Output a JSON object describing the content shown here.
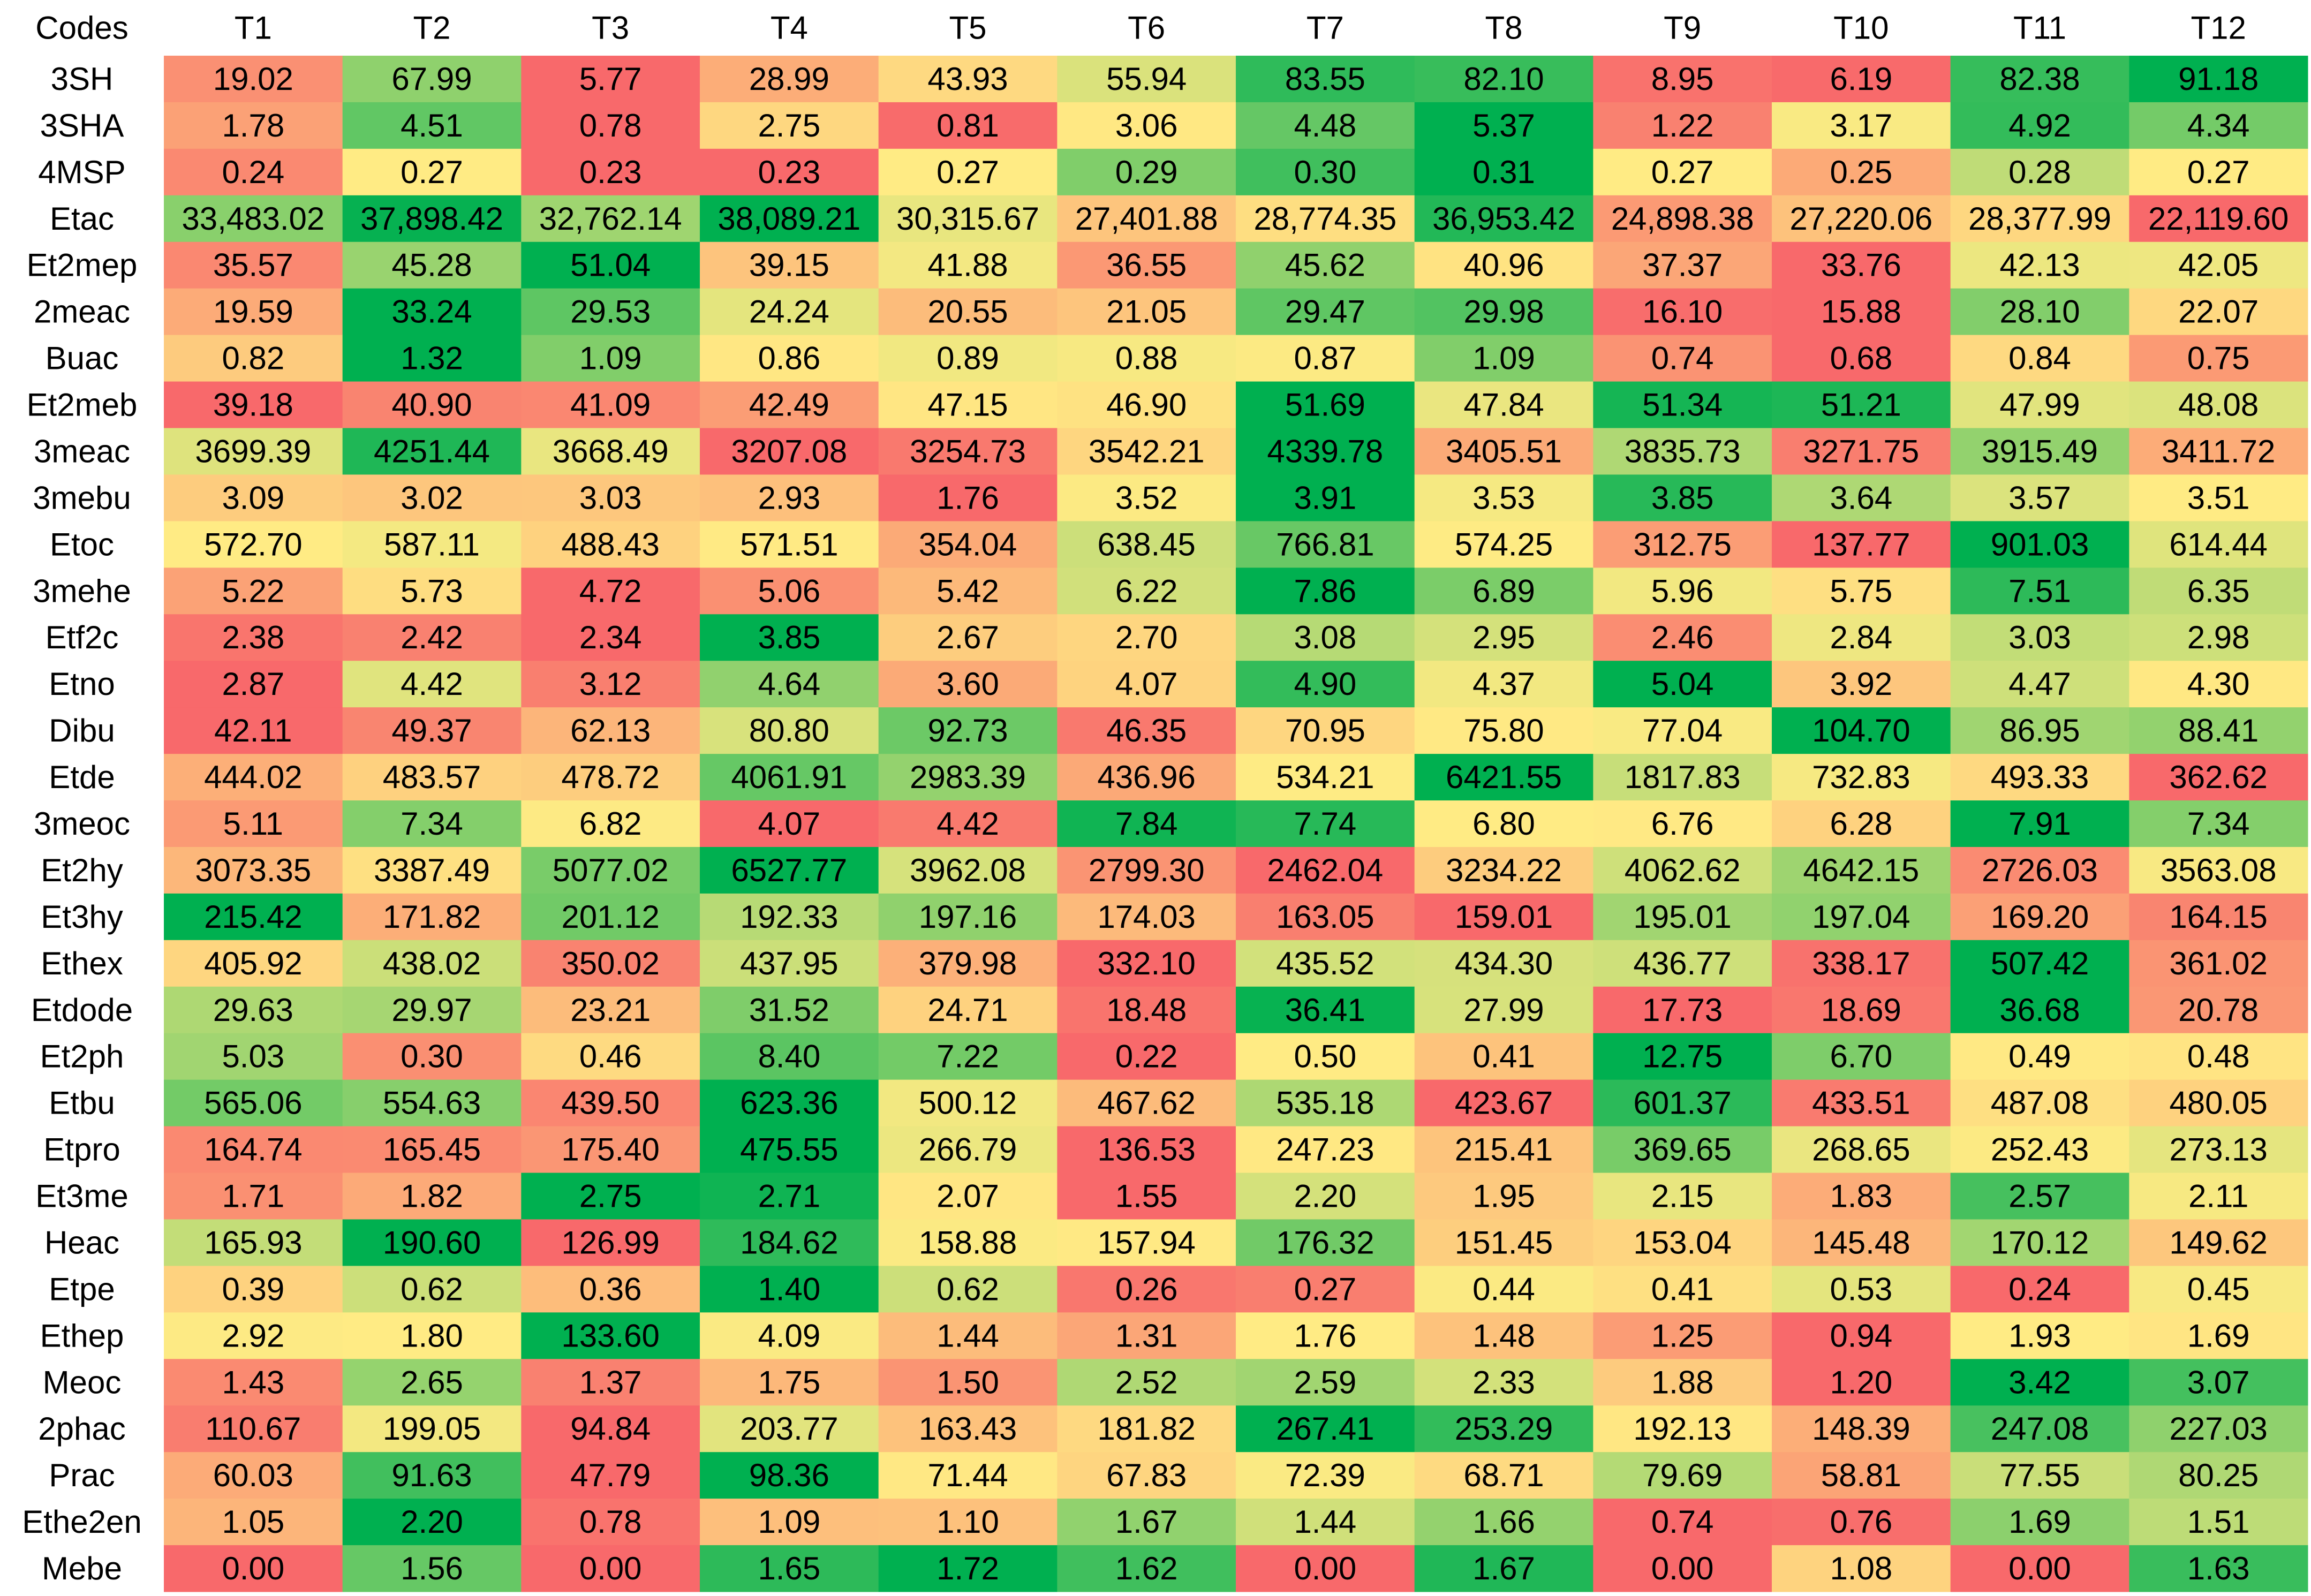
{
  "chart_data": {
    "type": "heatmap",
    "corner_label": "Codes",
    "color_scale": {
      "direction": "per-row",
      "low": "#f8696b",
      "mid": "#ffeb84",
      "high": "#00b050"
    },
    "columns": [
      "T1",
      "T2",
      "T3",
      "T4",
      "T5",
      "T6",
      "T7",
      "T8",
      "T9",
      "T10",
      "T11",
      "T12"
    ],
    "rows": [
      {
        "code": "3SH",
        "labels": [
          "19.02",
          "67.99",
          "5.77",
          "28.99",
          "43.93",
          "55.94",
          "83.55",
          "82.10",
          "8.95",
          "6.19",
          "82.38",
          "91.18"
        ],
        "values": [
          19.02,
          67.99,
          5.77,
          28.99,
          43.93,
          55.94,
          83.55,
          82.1,
          8.95,
          6.19,
          82.38,
          91.18
        ]
      },
      {
        "code": "3SHA",
        "labels": [
          "1.78",
          "4.51",
          "0.78",
          "2.75",
          "0.81",
          "3.06",
          "4.48",
          "5.37",
          "1.22",
          "3.17",
          "4.92",
          "4.34"
        ],
        "values": [
          1.78,
          4.51,
          0.78,
          2.75,
          0.81,
          3.06,
          4.48,
          5.37,
          1.22,
          3.17,
          4.92,
          4.34
        ]
      },
      {
        "code": "4MSP",
        "labels": [
          "0.24",
          "0.27",
          "0.23",
          "0.23",
          "0.27",
          "0.29",
          "0.30",
          "0.31",
          "0.27",
          "0.25",
          "0.28",
          "0.27"
        ],
        "values": [
          0.24,
          0.27,
          0.23,
          0.23,
          0.27,
          0.29,
          0.3,
          0.31,
          0.27,
          0.25,
          0.28,
          0.27
        ]
      },
      {
        "code": "Etac",
        "labels": [
          "33,483.02",
          "37,898.42",
          "32,762.14",
          "38,089.21",
          "30,315.67",
          "27,401.88",
          "28,774.35",
          "36,953.42",
          "24,898.38",
          "27,220.06",
          "28,377.99",
          "22,119.60"
        ],
        "values": [
          33483.02,
          37898.42,
          32762.14,
          38089.21,
          30315.67,
          27401.88,
          28774.35,
          36953.42,
          24898.38,
          27220.06,
          28377.99,
          22119.6
        ]
      },
      {
        "code": "Et2mep",
        "labels": [
          "35.57",
          "45.28",
          "51.04",
          "39.15",
          "41.88",
          "36.55",
          "45.62",
          "40.96",
          "37.37",
          "33.76",
          "42.13",
          "42.05"
        ],
        "values": [
          35.57,
          45.28,
          51.04,
          39.15,
          41.88,
          36.55,
          45.62,
          40.96,
          37.37,
          33.76,
          42.13,
          42.05
        ]
      },
      {
        "code": "2meac",
        "labels": [
          "19.59",
          "33.24",
          "29.53",
          "24.24",
          "20.55",
          "21.05",
          "29.47",
          "29.98",
          "16.10",
          "15.88",
          "28.10",
          "22.07"
        ],
        "values": [
          19.59,
          33.24,
          29.53,
          24.24,
          20.55,
          21.05,
          29.47,
          29.98,
          16.1,
          15.88,
          28.1,
          22.07
        ]
      },
      {
        "code": "Buac",
        "labels": [
          "0.82",
          "1.32",
          "1.09",
          "0.86",
          "0.89",
          "0.88",
          "0.87",
          "1.09",
          "0.74",
          "0.68",
          "0.84",
          "0.75"
        ],
        "values": [
          0.82,
          1.32,
          1.09,
          0.86,
          0.89,
          0.88,
          0.87,
          1.09,
          0.74,
          0.68,
          0.84,
          0.75
        ]
      },
      {
        "code": "Et2meb",
        "labels": [
          "39.18",
          "40.90",
          "41.09",
          "42.49",
          "47.15",
          "46.90",
          "51.69",
          "47.84",
          "51.34",
          "51.21",
          "47.99",
          "48.08"
        ],
        "values": [
          39.18,
          40.9,
          41.09,
          42.49,
          47.15,
          46.9,
          51.69,
          47.84,
          51.34,
          51.21,
          47.99,
          48.08
        ]
      },
      {
        "code": "3meac",
        "labels": [
          "3699.39",
          "4251.44",
          "3668.49",
          "3207.08",
          "3254.73",
          "3542.21",
          "4339.78",
          "3405.51",
          "3835.73",
          "3271.75",
          "3915.49",
          "3411.72"
        ],
        "values": [
          3699.39,
          4251.44,
          3668.49,
          3207.08,
          3254.73,
          3542.21,
          4339.78,
          3405.51,
          3835.73,
          3271.75,
          3915.49,
          3411.72
        ]
      },
      {
        "code": "3mebu",
        "labels": [
          "3.09",
          "3.02",
          "3.03",
          "2.93",
          "1.76",
          "3.52",
          "3.91",
          "3.53",
          "3.85",
          "3.64",
          "3.57",
          "3.51"
        ],
        "values": [
          3.09,
          3.02,
          3.03,
          2.93,
          1.76,
          3.52,
          3.91,
          3.53,
          3.85,
          3.64,
          3.57,
          3.51
        ]
      },
      {
        "code": "Etoc",
        "labels": [
          "572.70",
          "587.11",
          "488.43",
          "571.51",
          "354.04",
          "638.45",
          "766.81",
          "574.25",
          "312.75",
          "137.77",
          "901.03",
          "614.44"
        ],
        "values": [
          572.7,
          587.11,
          488.43,
          571.51,
          354.04,
          638.45,
          766.81,
          574.25,
          312.75,
          137.77,
          901.03,
          614.44
        ]
      },
      {
        "code": "3mehe",
        "labels": [
          "5.22",
          "5.73",
          "4.72",
          "5.06",
          "5.42",
          "6.22",
          "7.86",
          "6.89",
          "5.96",
          "5.75",
          "7.51",
          "6.35"
        ],
        "values": [
          5.22,
          5.73,
          4.72,
          5.06,
          5.42,
          6.22,
          7.86,
          6.89,
          5.96,
          5.75,
          7.51,
          6.35
        ]
      },
      {
        "code": "Etf2c",
        "labels": [
          "2.38",
          "2.42",
          "2.34",
          "3.85",
          "2.67",
          "2.70",
          "3.08",
          "2.95",
          "2.46",
          "2.84",
          "3.03",
          "2.98"
        ],
        "values": [
          2.38,
          2.42,
          2.34,
          3.85,
          2.67,
          2.7,
          3.08,
          2.95,
          2.46,
          2.84,
          3.03,
          2.98
        ]
      },
      {
        "code": "Etno",
        "labels": [
          "2.87",
          "4.42",
          "3.12",
          "4.64",
          "3.60",
          "4.07",
          "4.90",
          "4.37",
          "5.04",
          "3.92",
          "4.47",
          "4.30"
        ],
        "values": [
          2.87,
          4.42,
          3.12,
          4.64,
          3.6,
          4.07,
          4.9,
          4.37,
          5.04,
          3.92,
          4.47,
          4.3
        ]
      },
      {
        "code": "Dibu",
        "labels": [
          "42.11",
          "49.37",
          "62.13",
          "80.80",
          "92.73",
          "46.35",
          "70.95",
          "75.80",
          "77.04",
          "104.70",
          "86.95",
          "88.41"
        ],
        "values": [
          42.11,
          49.37,
          62.13,
          80.8,
          92.73,
          46.35,
          70.95,
          75.8,
          77.04,
          104.7,
          86.95,
          88.41
        ]
      },
      {
        "code": "Etde",
        "labels": [
          "444.02",
          "483.57",
          "478.72",
          "4061.91",
          "2983.39",
          "436.96",
          "534.21",
          "6421.55",
          "1817.83",
          "732.83",
          "493.33",
          "362.62"
        ],
        "values": [
          444.02,
          483.57,
          478.72,
          4061.91,
          2983.39,
          436.96,
          534.21,
          6421.55,
          1817.83,
          732.83,
          493.33,
          362.62
        ]
      },
      {
        "code": "3meoc",
        "labels": [
          "5.11",
          "7.34",
          "6.82",
          "4.07",
          "4.42",
          "7.84",
          "7.74",
          "6.80",
          "6.76",
          "6.28",
          "7.91",
          "7.34"
        ],
        "values": [
          5.11,
          7.34,
          6.82,
          4.07,
          4.42,
          7.84,
          7.74,
          6.8,
          6.76,
          6.28,
          7.91,
          7.34
        ]
      },
      {
        "code": "Et2hy",
        "labels": [
          "3073.35",
          "3387.49",
          "5077.02",
          "6527.77",
          "3962.08",
          "2799.30",
          "2462.04",
          "3234.22",
          "4062.62",
          "4642.15",
          "2726.03",
          "3563.08"
        ],
        "values": [
          3073.35,
          3387.49,
          5077.02,
          6527.77,
          3962.08,
          2799.3,
          2462.04,
          3234.22,
          4062.62,
          4642.15,
          2726.03,
          3563.08
        ]
      },
      {
        "code": "Et3hy",
        "labels": [
          "215.42",
          "171.82",
          "201.12",
          "192.33",
          "197.16",
          "174.03",
          "163.05",
          "159.01",
          "195.01",
          "197.04",
          "169.20",
          "164.15"
        ],
        "values": [
          215.42,
          171.82,
          201.12,
          192.33,
          197.16,
          174.03,
          163.05,
          159.01,
          195.01,
          197.04,
          169.2,
          164.15
        ]
      },
      {
        "code": "Ethex",
        "labels": [
          "405.92",
          "438.02",
          "350.02",
          "437.95",
          "379.98",
          "332.10",
          "435.52",
          "434.30",
          "436.77",
          "338.17",
          "507.42",
          "361.02"
        ],
        "values": [
          405.92,
          438.02,
          350.02,
          437.95,
          379.98,
          332.1,
          435.52,
          434.3,
          436.77,
          338.17,
          507.42,
          361.02
        ]
      },
      {
        "code": "Etdode",
        "labels": [
          "29.63",
          "29.97",
          "23.21",
          "31.52",
          "24.71",
          "18.48",
          "36.41",
          "27.99",
          "17.73",
          "18.69",
          "36.68",
          "20.78"
        ],
        "values": [
          29.63,
          29.97,
          23.21,
          31.52,
          24.71,
          18.48,
          36.41,
          27.99,
          17.73,
          18.69,
          36.68,
          20.78
        ]
      },
      {
        "code": "Et2ph",
        "labels": [
          "5.03",
          "0.30",
          "0.46",
          "8.40",
          "7.22",
          "0.22",
          "0.50",
          "0.41",
          "12.75",
          "6.70",
          "0.49",
          "0.48"
        ],
        "values": [
          5.03,
          0.3,
          0.46,
          8.4,
          7.22,
          0.22,
          0.5,
          0.41,
          12.75,
          6.7,
          0.49,
          0.48
        ]
      },
      {
        "code": "Etbu",
        "labels": [
          "565.06",
          "554.63",
          "439.50",
          "623.36",
          "500.12",
          "467.62",
          "535.18",
          "423.67",
          "601.37",
          "433.51",
          "487.08",
          "480.05"
        ],
        "values": [
          565.06,
          554.63,
          439.5,
          623.36,
          500.12,
          467.62,
          535.18,
          423.67,
          601.37,
          433.51,
          487.08,
          480.05
        ]
      },
      {
        "code": "Etpro",
        "labels": [
          "164.74",
          "165.45",
          "175.40",
          "475.55",
          "266.79",
          "136.53",
          "247.23",
          "215.41",
          "369.65",
          "268.65",
          "252.43",
          "273.13"
        ],
        "values": [
          164.74,
          165.45,
          175.4,
          475.55,
          266.79,
          136.53,
          247.23,
          215.41,
          369.65,
          268.65,
          252.43,
          273.13
        ]
      },
      {
        "code": "Et3me",
        "labels": [
          "1.71",
          "1.82",
          "2.75",
          "2.71",
          "2.07",
          "1.55",
          "2.20",
          "1.95",
          "2.15",
          "1.83",
          "2.57",
          "2.11"
        ],
        "values": [
          1.71,
          1.82,
          2.75,
          2.71,
          2.07,
          1.55,
          2.2,
          1.95,
          2.15,
          1.83,
          2.57,
          2.11
        ]
      },
      {
        "code": "Heac",
        "labels": [
          "165.93",
          "190.60",
          "126.99",
          "184.62",
          "158.88",
          "157.94",
          "176.32",
          "151.45",
          "153.04",
          "145.48",
          "170.12",
          "149.62"
        ],
        "values": [
          165.93,
          190.6,
          126.99,
          184.62,
          158.88,
          157.94,
          176.32,
          151.45,
          153.04,
          145.48,
          170.12,
          149.62
        ]
      },
      {
        "code": "Etpe",
        "labels": [
          "0.39",
          "0.62",
          "0.36",
          "1.40",
          "0.62",
          "0.26",
          "0.27",
          "0.44",
          "0.41",
          "0.53",
          "0.24",
          "0.45"
        ],
        "values": [
          0.39,
          0.62,
          0.36,
          1.4,
          0.62,
          0.26,
          0.27,
          0.44,
          0.41,
          0.53,
          0.24,
          0.45
        ]
      },
      {
        "code": "Ethep",
        "labels": [
          "2.92",
          "1.80",
          "133.60",
          "4.09",
          "1.44",
          "1.31",
          "1.76",
          "1.48",
          "1.25",
          "0.94",
          "1.93",
          "1.69"
        ],
        "values": [
          2.92,
          1.8,
          133.6,
          4.09,
          1.44,
          1.31,
          1.76,
          1.48,
          1.25,
          0.94,
          1.93,
          1.69
        ]
      },
      {
        "code": "Meoc",
        "labels": [
          "1.43",
          "2.65",
          "1.37",
          "1.75",
          "1.50",
          "2.52",
          "2.59",
          "2.33",
          "1.88",
          "1.20",
          "3.42",
          "3.07"
        ],
        "values": [
          1.43,
          2.65,
          1.37,
          1.75,
          1.5,
          2.52,
          2.59,
          2.33,
          1.88,
          1.2,
          3.42,
          3.07
        ]
      },
      {
        "code": "2phac",
        "labels": [
          "110.67",
          "199.05",
          "94.84",
          "203.77",
          "163.43",
          "181.82",
          "267.41",
          "253.29",
          "192.13",
          "148.39",
          "247.08",
          "227.03"
        ],
        "values": [
          110.67,
          199.05,
          94.84,
          203.77,
          163.43,
          181.82,
          267.41,
          253.29,
          192.13,
          148.39,
          247.08,
          227.03
        ]
      },
      {
        "code": "Prac",
        "labels": [
          "60.03",
          "91.63",
          "47.79",
          "98.36",
          "71.44",
          "67.83",
          "72.39",
          "68.71",
          "79.69",
          "58.81",
          "77.55",
          "80.25"
        ],
        "values": [
          60.03,
          91.63,
          47.79,
          98.36,
          71.44,
          67.83,
          72.39,
          68.71,
          79.69,
          58.81,
          77.55,
          80.25
        ]
      },
      {
        "code": "Ethe2en",
        "labels": [
          "1.05",
          "2.20",
          "0.78",
          "1.09",
          "1.10",
          "1.67",
          "1.44",
          "1.66",
          "0.74",
          "0.76",
          "1.69",
          "1.51"
        ],
        "values": [
          1.05,
          2.2,
          0.78,
          1.09,
          1.1,
          1.67,
          1.44,
          1.66,
          0.74,
          0.76,
          1.69,
          1.51
        ]
      },
      {
        "code": "Mebe",
        "labels": [
          "0.00",
          "1.56",
          "0.00",
          "1.65",
          "1.72",
          "1.62",
          "0.00",
          "1.67",
          "0.00",
          "1.08",
          "0.00",
          "1.63"
        ],
        "values": [
          0.0,
          1.56,
          0.0,
          1.65,
          1.72,
          1.62,
          0.0,
          1.67,
          0.0,
          1.08,
          0.0,
          1.63
        ]
      }
    ]
  }
}
